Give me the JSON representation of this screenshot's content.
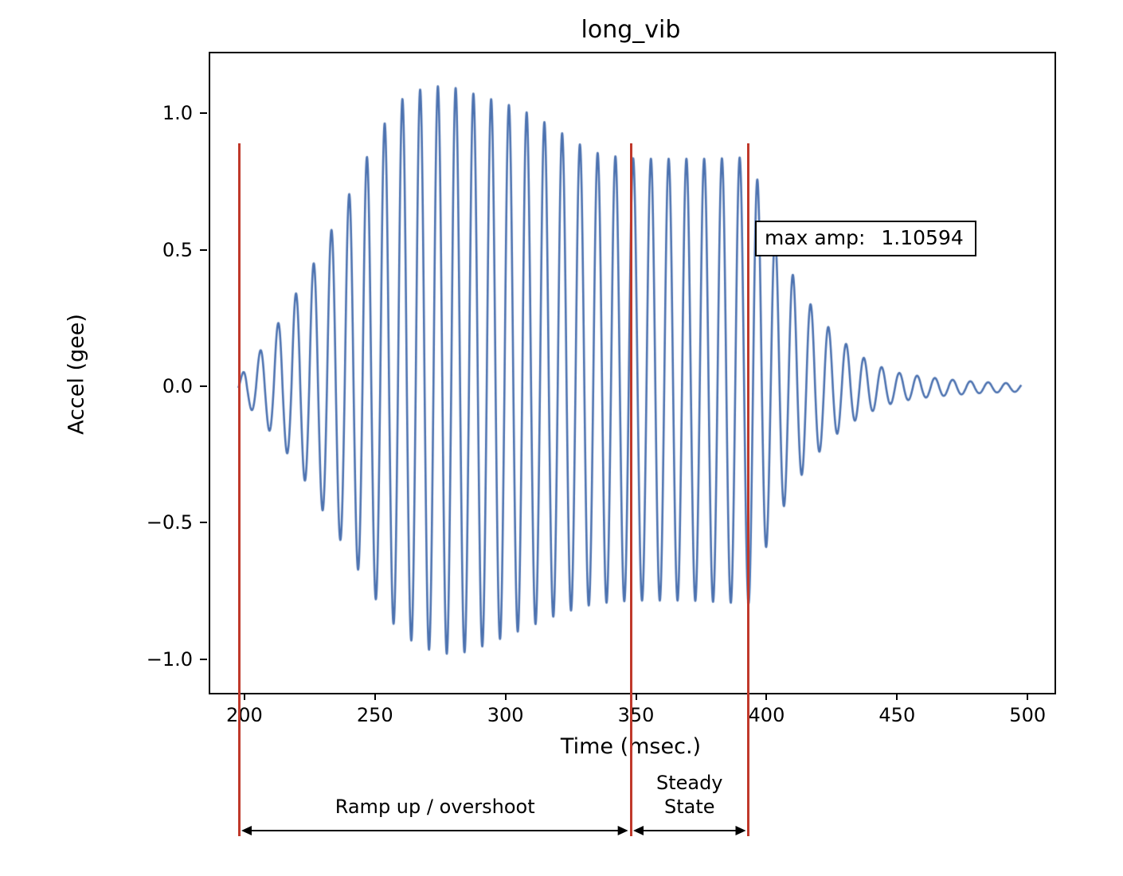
{
  "chart_data": {
    "type": "line",
    "title": "long_vib",
    "xlabel": "Time (msec.)",
    "ylabel": "Accel (gee)",
    "xlim": [
      186.3,
      509.7
    ],
    "ylim": [
      -1.118,
      1.226
    ],
    "grid": false,
    "legend": null,
    "line_color": "#4c72b0",
    "x_ticks": {
      "values": [
        200,
        250,
        300,
        350,
        400,
        450,
        500
      ],
      "labels": [
        "200",
        "250",
        "300",
        "350",
        "400",
        "450",
        "500"
      ]
    },
    "y_ticks": {
      "values": [
        -1.0,
        -0.5,
        0.0,
        0.5,
        1.0
      ],
      "labels": [
        "−1.0",
        "−0.5",
        "0.0",
        "0.5",
        "1.0"
      ]
    },
    "annotation": {
      "label": "max amp:",
      "value": "1.10594"
    },
    "marker_lines": {
      "color": "#c0392b",
      "x_values": [
        198,
        348,
        393
      ]
    },
    "regions": [
      {
        "label": "Ramp up / overshoot",
        "from": 198,
        "to": 348
      },
      {
        "label": "Steady\nState",
        "from": 348,
        "to": 393
      }
    ],
    "signal": {
      "t_start": 197,
      "t_end": 497,
      "step": 0.08,
      "period_ms": 6.8,
      "max_amp": 1.10594,
      "upper_envelope": [
        [
          197,
          0.02
        ],
        [
          200,
          0.08
        ],
        [
          205,
          0.13
        ],
        [
          210,
          0.2
        ],
        [
          215,
          0.28
        ],
        [
          220,
          0.36
        ],
        [
          225,
          0.44
        ],
        [
          230,
          0.53
        ],
        [
          235,
          0.62
        ],
        [
          240,
          0.72
        ],
        [
          245,
          0.82
        ],
        [
          250,
          0.92
        ],
        [
          255,
          1.0
        ],
        [
          260,
          1.06
        ],
        [
          265,
          1.09
        ],
        [
          270,
          1.1
        ],
        [
          273,
          1.106
        ],
        [
          280,
          1.1
        ],
        [
          290,
          1.07
        ],
        [
          300,
          1.04
        ],
        [
          310,
          1.0
        ],
        [
          315,
          0.97
        ],
        [
          320,
          0.94
        ],
        [
          325,
          0.91
        ],
        [
          330,
          0.88
        ],
        [
          335,
          0.86
        ],
        [
          340,
          0.85
        ],
        [
          350,
          0.84
        ],
        [
          360,
          0.84
        ],
        [
          370,
          0.84
        ],
        [
          380,
          0.84
        ],
        [
          390,
          0.845
        ],
        [
          393,
          0.85
        ],
        [
          396,
          0.76
        ],
        [
          400,
          0.62
        ],
        [
          404,
          0.52
        ],
        [
          408,
          0.44
        ],
        [
          412,
          0.37
        ],
        [
          416,
          0.31
        ],
        [
          420,
          0.26
        ],
        [
          425,
          0.2
        ],
        [
          430,
          0.16
        ],
        [
          435,
          0.12
        ],
        [
          440,
          0.09
        ],
        [
          445,
          0.07
        ],
        [
          450,
          0.055
        ],
        [
          460,
          0.04
        ],
        [
          470,
          0.03
        ],
        [
          480,
          0.022
        ],
        [
          490,
          0.018
        ],
        [
          497,
          0.015
        ]
      ],
      "lower_envelope": [
        [
          197,
          0.02
        ],
        [
          200,
          0.06
        ],
        [
          205,
          0.11
        ],
        [
          210,
          0.17
        ],
        [
          215,
          0.23
        ],
        [
          220,
          0.3
        ],
        [
          225,
          0.38
        ],
        [
          230,
          0.46
        ],
        [
          235,
          0.54
        ],
        [
          240,
          0.62
        ],
        [
          245,
          0.7
        ],
        [
          250,
          0.78
        ],
        [
          255,
          0.85
        ],
        [
          260,
          0.9
        ],
        [
          265,
          0.94
        ],
        [
          270,
          0.96
        ],
        [
          275,
          0.975
        ],
        [
          282,
          0.975
        ],
        [
          290,
          0.95
        ],
        [
          300,
          0.91
        ],
        [
          310,
          0.87
        ],
        [
          320,
          0.83
        ],
        [
          330,
          0.8
        ],
        [
          340,
          0.785
        ],
        [
          350,
          0.78
        ],
        [
          360,
          0.78
        ],
        [
          370,
          0.78
        ],
        [
          380,
          0.785
        ],
        [
          390,
          0.79
        ],
        [
          393,
          0.79
        ],
        [
          396,
          0.69
        ],
        [
          400,
          0.56
        ],
        [
          404,
          0.47
        ],
        [
          408,
          0.4
        ],
        [
          412,
          0.33
        ],
        [
          416,
          0.28
        ],
        [
          420,
          0.23
        ],
        [
          425,
          0.18
        ],
        [
          430,
          0.14
        ],
        [
          435,
          0.11
        ],
        [
          440,
          0.085
        ],
        [
          445,
          0.065
        ],
        [
          450,
          0.05
        ],
        [
          460,
          0.036
        ],
        [
          470,
          0.027
        ],
        [
          480,
          0.02
        ],
        [
          490,
          0.016
        ],
        [
          497,
          0.014
        ]
      ]
    }
  }
}
